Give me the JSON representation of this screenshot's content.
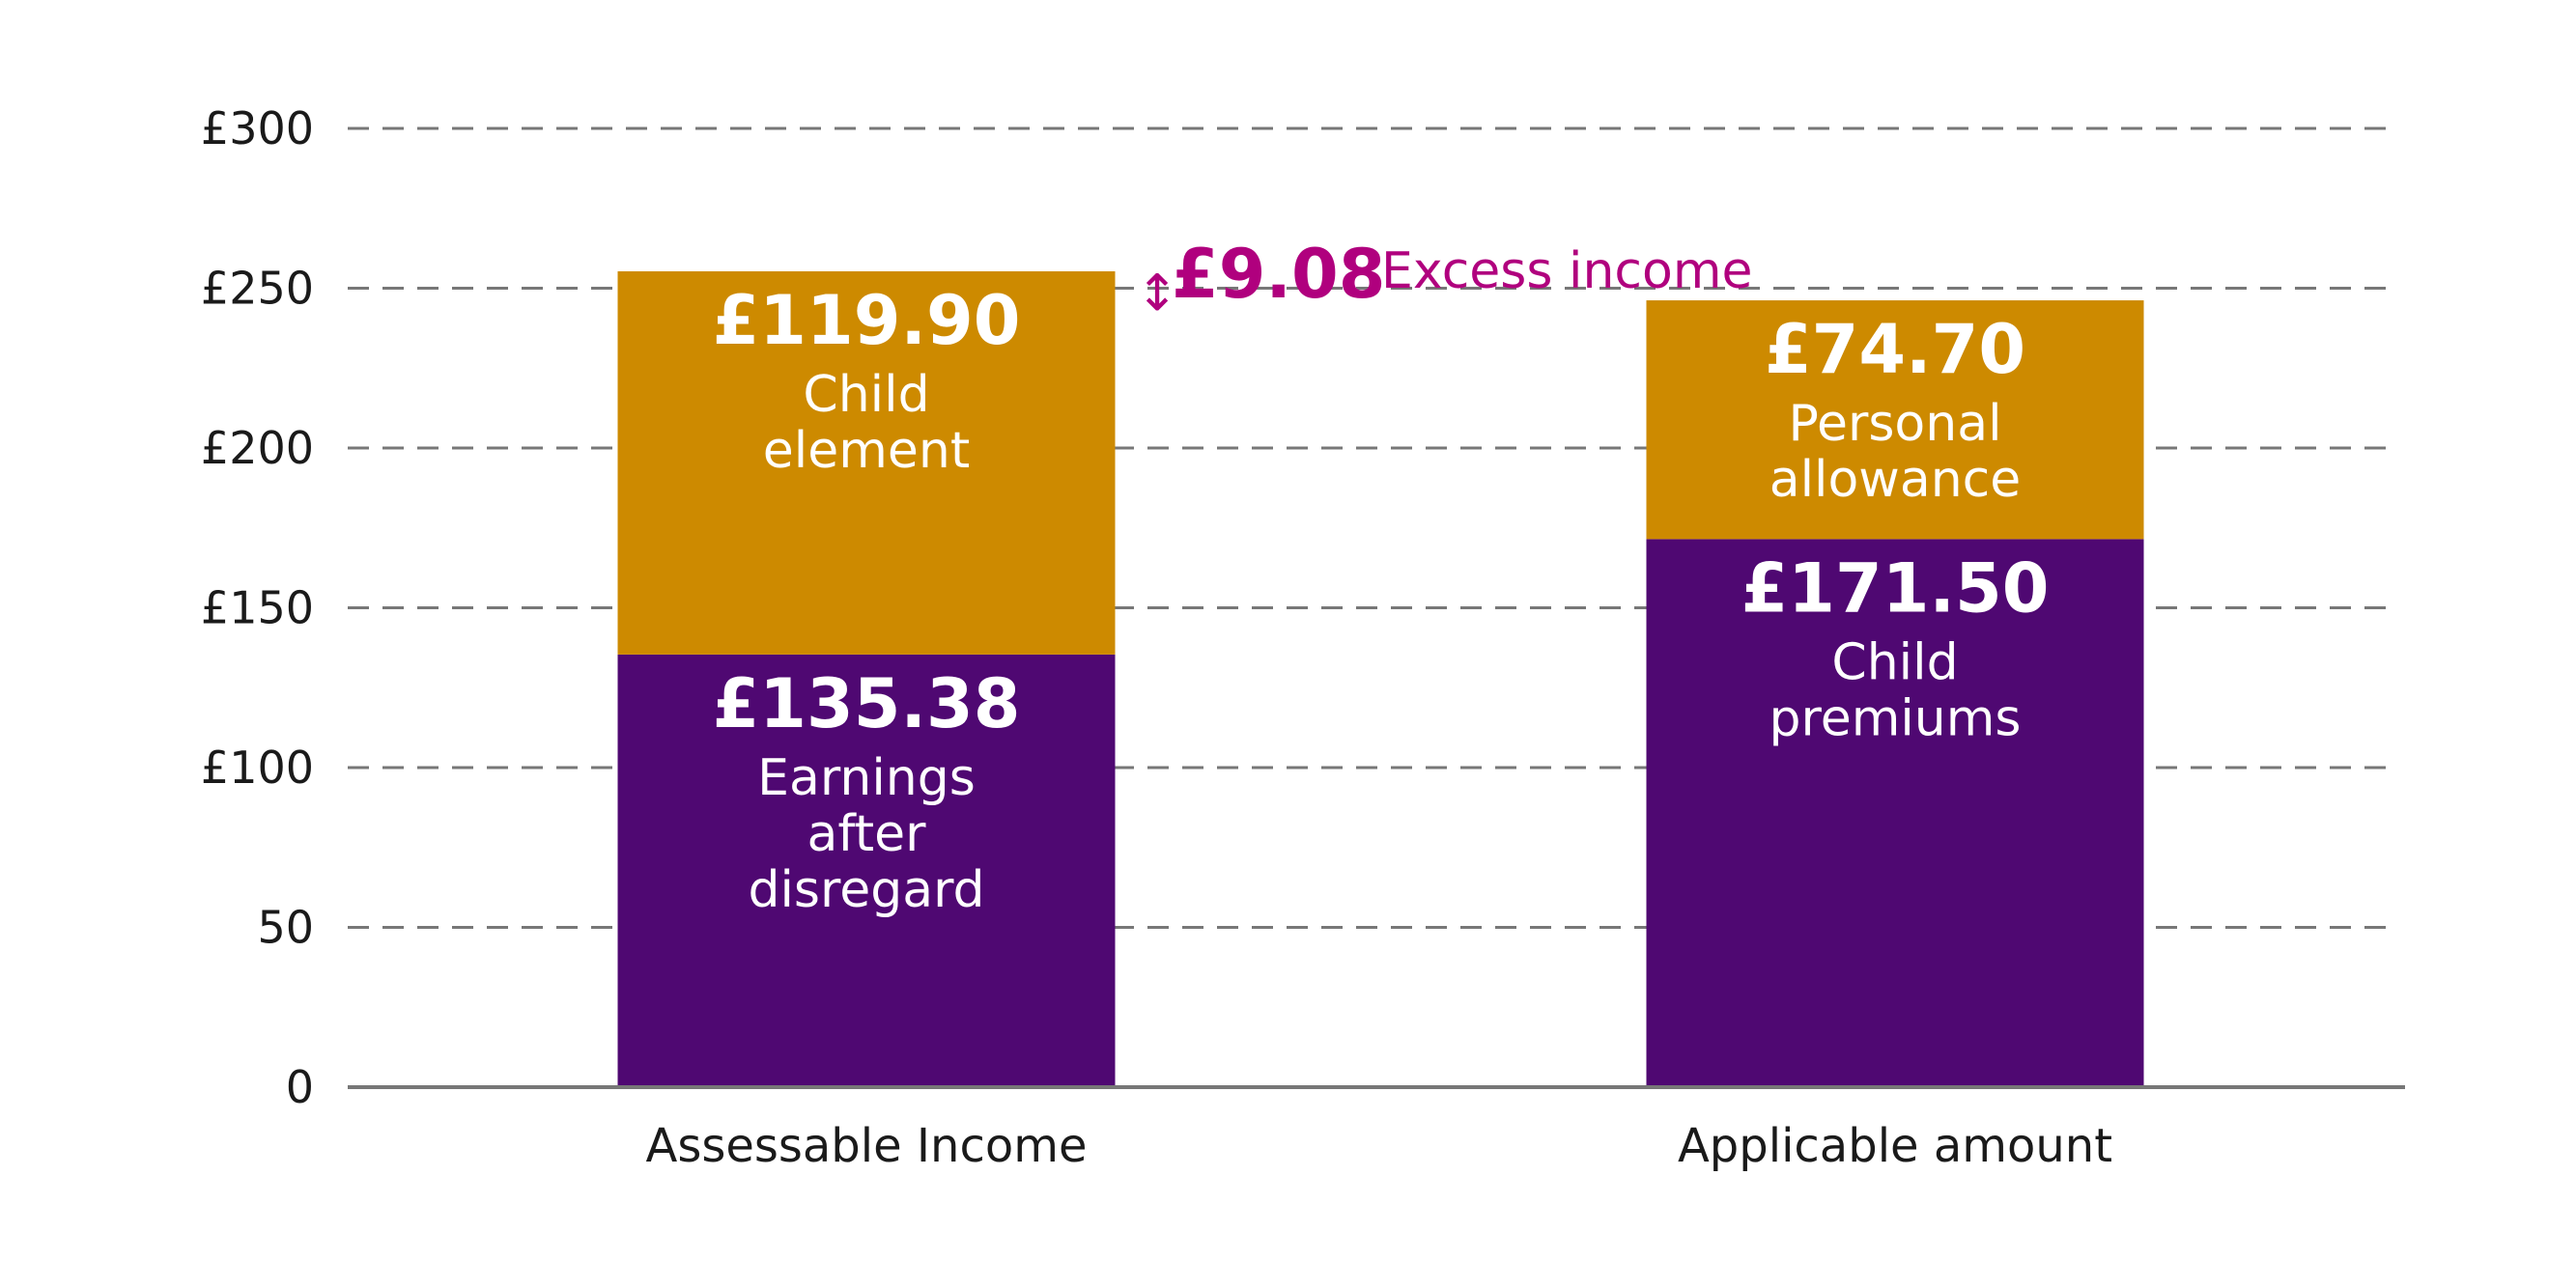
{
  "colors": {
    "lower_segment": "#4f0872",
    "upper_segment": "#cd8a00",
    "annotation": "#b0007e",
    "grid": "#777777",
    "axis": "#777777"
  },
  "chart_data": {
    "type": "bar",
    "stacked": true,
    "categories": [
      "Assessable Income",
      "Applicable amount"
    ],
    "series": [
      {
        "segment_labels": [
          "Earnings after disregard",
          "Child premiums"
        ],
        "values": [
          135.38,
          171.5
        ],
        "value_labels": [
          "£135.38",
          "£171.50"
        ]
      },
      {
        "segment_labels": [
          "Child element",
          "Personal allowance"
        ],
        "values": [
          119.9,
          74.7
        ],
        "value_labels": [
          "£119.90",
          "£74.70"
        ]
      }
    ],
    "ylim": [
      0,
      300
    ],
    "yticks": [
      0,
      50,
      100,
      150,
      200,
      250,
      300
    ],
    "ytick_labels": [
      "0",
      "50",
      "£100",
      "£150",
      "£200",
      "£250",
      "£300"
    ],
    "grid": true,
    "annotation": {
      "value": 9.08,
      "value_label": "£9.08",
      "text": "Excess income",
      "arrow": "↕"
    }
  }
}
